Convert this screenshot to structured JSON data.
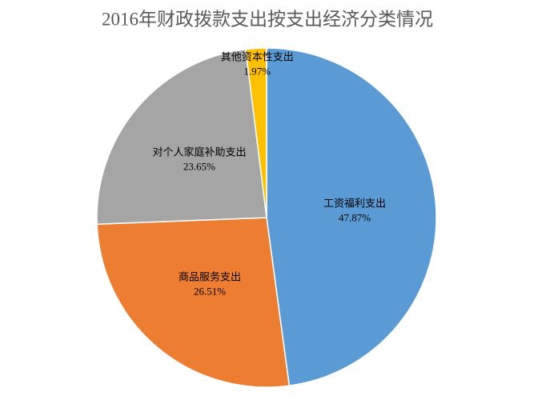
{
  "chart_data": {
    "type": "pie",
    "title": "2016年财政拨款支出按支出经济分类情况",
    "categories": [
      "工资福利支出",
      "商品服务支出",
      "对个人家庭补助支出",
      "其他资本性支出"
    ],
    "values": [
      47.87,
      26.51,
      23.65,
      1.97
    ],
    "value_labels": [
      "47.87%",
      "26.51%",
      "23.65%",
      "1.97%"
    ],
    "colors": [
      "#5b9bd5",
      "#ed7d31",
      "#a5a5a5",
      "#ffc000"
    ]
  }
}
